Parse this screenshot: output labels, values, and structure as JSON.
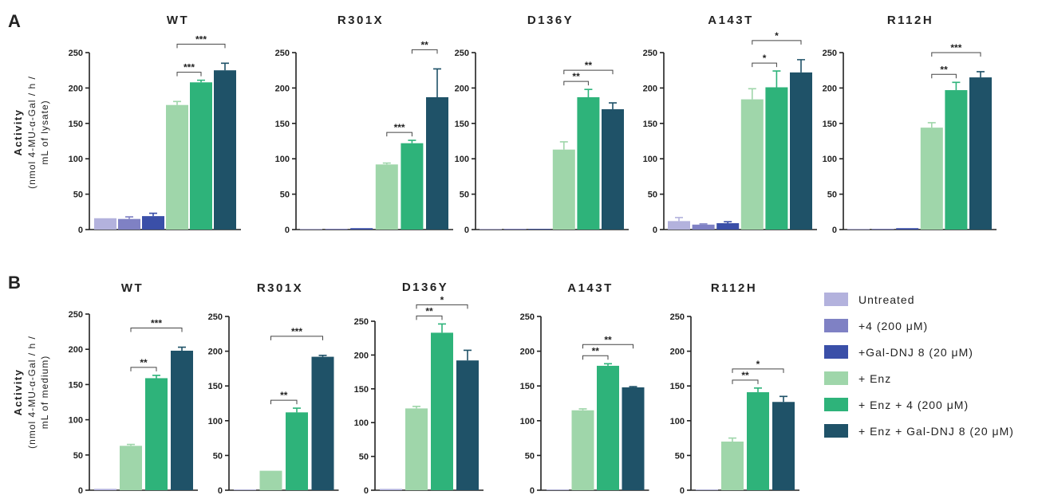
{
  "panels": [
    {
      "letter": "A",
      "ylabel_bold": "Activity",
      "ylabel_line1": "(nmol 4-MU-α-Gal / h /",
      "ylabel_line2": "mL of lysate)"
    },
    {
      "letter": "B",
      "ylabel_bold": "Activity",
      "ylabel_line1": "(nmol 4-MU-α-Gal / h /",
      "ylabel_line2": "mL of medium)"
    }
  ],
  "legend": {
    "items": [
      {
        "text": "Untreated",
        "color": "#b3b2dd"
      },
      {
        "text": "+4 (200 μM)",
        "color": "#7f81c4"
      },
      {
        "text": "+Gal-DNJ 8 (20 μM)",
        "color": "#3a4fa8"
      },
      {
        "text": "+ Enz",
        "color": "#9fd6aa"
      },
      {
        "text": "+ Enz + 4 (200 μM)",
        "color": "#2eb37a"
      },
      {
        "text": "+ Enz + Gal-DNJ 8 (20 μM)",
        "color": "#1f5268"
      }
    ]
  },
  "chart_data": [
    {
      "panel": "A",
      "type": "bar",
      "title": "WT",
      "ylim": [
        0,
        250
      ],
      "yticks": [
        0,
        50,
        100,
        150,
        200,
        250
      ],
      "categories": [
        "Untreated",
        "+4 (200 μM)",
        "+Gal-DNJ 8 (20 μM)",
        "+ Enz",
        "+ Enz + 4 (200 μM)",
        "+ Enz + Gal-DNJ 8 (20 μM)"
      ],
      "values": [
        16,
        15,
        19,
        176,
        208,
        225
      ],
      "errors": [
        0,
        3,
        4,
        5,
        3,
        10
      ],
      "significance": [
        {
          "from": 3,
          "to": 4,
          "label": "***"
        },
        {
          "from": 3,
          "to": 5,
          "label": "***"
        }
      ]
    },
    {
      "panel": "A",
      "type": "bar",
      "title": "R301X",
      "ylim": [
        0,
        250
      ],
      "yticks": [
        0,
        50,
        100,
        150,
        200,
        250
      ],
      "categories": [
        "Untreated",
        "+4 (200 μM)",
        "+Gal-DNJ 8 (20 μM)",
        "+ Enz",
        "+ Enz + 4 (200 μM)",
        "+ Enz + Gal-DNJ 8 (20 μM)"
      ],
      "values": [
        1,
        1,
        2,
        92,
        122,
        187
      ],
      "errors": [
        0,
        0,
        0,
        2,
        4,
        40
      ],
      "significance": [
        {
          "from": 3,
          "to": 4,
          "label": "***"
        },
        {
          "from": 4,
          "to": 5,
          "label": "**"
        }
      ]
    },
    {
      "panel": "A",
      "type": "bar",
      "title": "D136Y",
      "ylim": [
        0,
        250
      ],
      "yticks": [
        0,
        50,
        100,
        150,
        200,
        250
      ],
      "categories": [
        "Untreated",
        "+4 (200 μM)",
        "+Gal-DNJ 8 (20 μM)",
        "+ Enz",
        "+ Enz + 4 (200 μM)",
        "+ Enz + Gal-DNJ 8 (20 μM)"
      ],
      "values": [
        0,
        1,
        0,
        113,
        187,
        170
      ],
      "errors": [
        0,
        0,
        0,
        11,
        11,
        9
      ],
      "significance": [
        {
          "from": 3,
          "to": 4,
          "label": "**"
        },
        {
          "from": 3,
          "to": 5,
          "label": "**"
        }
      ]
    },
    {
      "panel": "A",
      "type": "bar",
      "title": "A143T",
      "ylim": [
        0,
        250
      ],
      "yticks": [
        0,
        50,
        100,
        150,
        200,
        250
      ],
      "categories": [
        "Untreated",
        "+4 (200 μM)",
        "+Gal-DNJ 8 (20 μM)",
        "+ Enz",
        "+ Enz + 4 (200 μM)",
        "+ Enz + Gal-DNJ 8 (20 μM)"
      ],
      "values": [
        12,
        7,
        9,
        184,
        201,
        222
      ],
      "errors": [
        5,
        1,
        2,
        15,
        23,
        18
      ],
      "significance": [
        {
          "from": 3,
          "to": 4,
          "label": "*"
        },
        {
          "from": 3,
          "to": 5,
          "label": "*"
        }
      ]
    },
    {
      "panel": "A",
      "type": "bar",
      "title": "R112H",
      "ylim": [
        0,
        250
      ],
      "yticks": [
        0,
        50,
        100,
        150,
        200,
        250
      ],
      "categories": [
        "Untreated",
        "+4 (200 μM)",
        "+Gal-DNJ 8 (20 μM)",
        "+ Enz",
        "+ Enz + 4 (200 μM)",
        "+ Enz + Gal-DNJ 8 (20 μM)"
      ],
      "values": [
        1,
        1,
        2,
        144,
        197,
        215
      ],
      "errors": [
        0,
        0,
        0,
        7,
        11,
        8
      ],
      "significance": [
        {
          "from": 3,
          "to": 4,
          "label": "**"
        },
        {
          "from": 3,
          "to": 5,
          "label": "***"
        }
      ]
    },
    {
      "panel": "B",
      "type": "bar",
      "title": "WT",
      "ylim": [
        0,
        250
      ],
      "yticks": [
        0,
        50,
        100,
        150,
        200,
        250
      ],
      "categories": [
        "Untreated",
        "+ Enz",
        "+ Enz + 4 (200 μM)",
        "+ Enz + Gal-DNJ 8 (20 μM)"
      ],
      "values": [
        2,
        63,
        159,
        198
      ],
      "errors": [
        0,
        2,
        4,
        5
      ],
      "significance": [
        {
          "from": 1,
          "to": 2,
          "label": "**"
        },
        {
          "from": 1,
          "to": 3,
          "label": "***"
        }
      ]
    },
    {
      "panel": "B",
      "type": "bar",
      "title": "R301X",
      "ylim": [
        0,
        250
      ],
      "yticks": [
        0,
        50,
        100,
        150,
        200,
        250
      ],
      "categories": [
        "Untreated",
        "+ Enz",
        "+ Enz + 4 (200 μM)",
        "+ Enz + Gal-DNJ 8 (20 μM)"
      ],
      "values": [
        1,
        28,
        112,
        192
      ],
      "errors": [
        0,
        0,
        6,
        2
      ],
      "significance": [
        {
          "from": 1,
          "to": 2,
          "label": "**"
        },
        {
          "from": 1,
          "to": 3,
          "label": "***"
        }
      ]
    },
    {
      "panel": "B",
      "type": "bar",
      "title": "D136Y",
      "ylim": [
        0,
        250
      ],
      "yticks": [
        0,
        50,
        100,
        150,
        200,
        250
      ],
      "categories": [
        "Untreated",
        "+ Enz",
        "+ Enz + 4 (200 μM)",
        "+ Enz + Gal-DNJ 8 (20 μM)"
      ],
      "values": [
        2,
        121,
        233,
        192
      ],
      "errors": [
        0,
        3,
        13,
        15
      ],
      "significance": [
        {
          "from": 1,
          "to": 2,
          "label": "**"
        },
        {
          "from": 1,
          "to": 3,
          "label": "*"
        }
      ]
    },
    {
      "panel": "B",
      "type": "bar",
      "title": "A143T",
      "ylim": [
        0,
        250
      ],
      "yticks": [
        0,
        50,
        100,
        150,
        200,
        250
      ],
      "categories": [
        "Untreated",
        "+ Enz",
        "+ Enz + 4 (200 μM)",
        "+ Enz + Gal-DNJ 8 (20 μM)"
      ],
      "values": [
        1,
        115,
        179,
        148
      ],
      "errors": [
        0,
        2,
        3,
        1
      ],
      "significance": [
        {
          "from": 1,
          "to": 2,
          "label": "**"
        },
        {
          "from": 1,
          "to": 3,
          "label": "**"
        }
      ]
    },
    {
      "panel": "B",
      "type": "bar",
      "title": "R112H",
      "ylim": [
        0,
        250
      ],
      "yticks": [
        0,
        50,
        100,
        150,
        200,
        250
      ],
      "categories": [
        "Untreated",
        "+ Enz",
        "+ Enz + 4 (200 μM)",
        "+ Enz + Gal-DNJ 8 (20 μM)"
      ],
      "values": [
        1,
        70,
        141,
        127
      ],
      "errors": [
        0,
        5,
        6,
        8
      ],
      "significance": [
        {
          "from": 1,
          "to": 2,
          "label": "**"
        },
        {
          "from": 1,
          "to": 3,
          "label": "*"
        }
      ]
    }
  ]
}
